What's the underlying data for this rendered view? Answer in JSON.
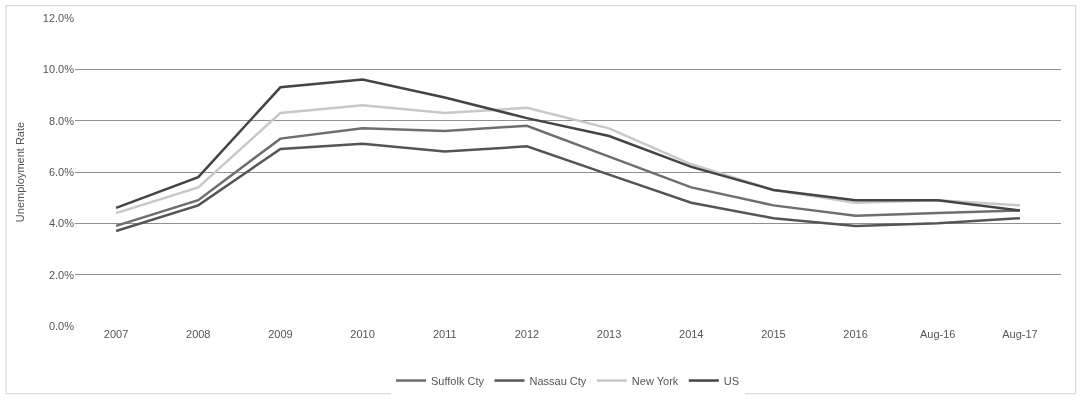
{
  "chart_data": {
    "type": "line",
    "ylabel": "Unemployment Rate",
    "categories": [
      "2007",
      "2008",
      "2009",
      "2010",
      "2011",
      "2012",
      "2013",
      "2014",
      "2015",
      "2016",
      "Aug-16",
      "Aug-17"
    ],
    "series": [
      {
        "name": "Suffolk Cty",
        "color": "#6e6e6e",
        "values": [
          3.9,
          4.9,
          7.3,
          7.7,
          7.6,
          7.8,
          6.6,
          5.4,
          4.7,
          4.3,
          4.4,
          4.5
        ]
      },
      {
        "name": "Nassau Cty",
        "color": "#555555",
        "values": [
          3.7,
          4.7,
          6.9,
          7.1,
          6.8,
          7.0,
          5.9,
          4.8,
          4.2,
          3.9,
          4.0,
          4.2
        ]
      },
      {
        "name": "New York",
        "color": "#c8c8c8",
        "values": [
          4.4,
          5.4,
          8.3,
          8.6,
          8.3,
          8.5,
          7.7,
          6.3,
          5.3,
          4.8,
          4.9,
          4.7
        ]
      },
      {
        "name": "US",
        "color": "#444444",
        "values": [
          4.6,
          5.8,
          9.3,
          9.6,
          8.9,
          8.1,
          7.4,
          6.2,
          5.3,
          4.9,
          4.9,
          4.5
        ]
      }
    ],
    "ylim": [
      0,
      12
    ],
    "yticks": [
      {
        "value": 0,
        "label": "0.0%"
      },
      {
        "value": 2,
        "label": "2.0%"
      },
      {
        "value": 4,
        "label": "4.0%"
      },
      {
        "value": 6,
        "label": "6.0%"
      },
      {
        "value": 8,
        "label": "8.0%"
      },
      {
        "value": 10,
        "label": "10.0%"
      },
      {
        "value": 12,
        "label": "12.0%"
      }
    ],
    "grid": "y",
    "legend": "bottom",
    "marker": "none",
    "line_style": "solid"
  }
}
